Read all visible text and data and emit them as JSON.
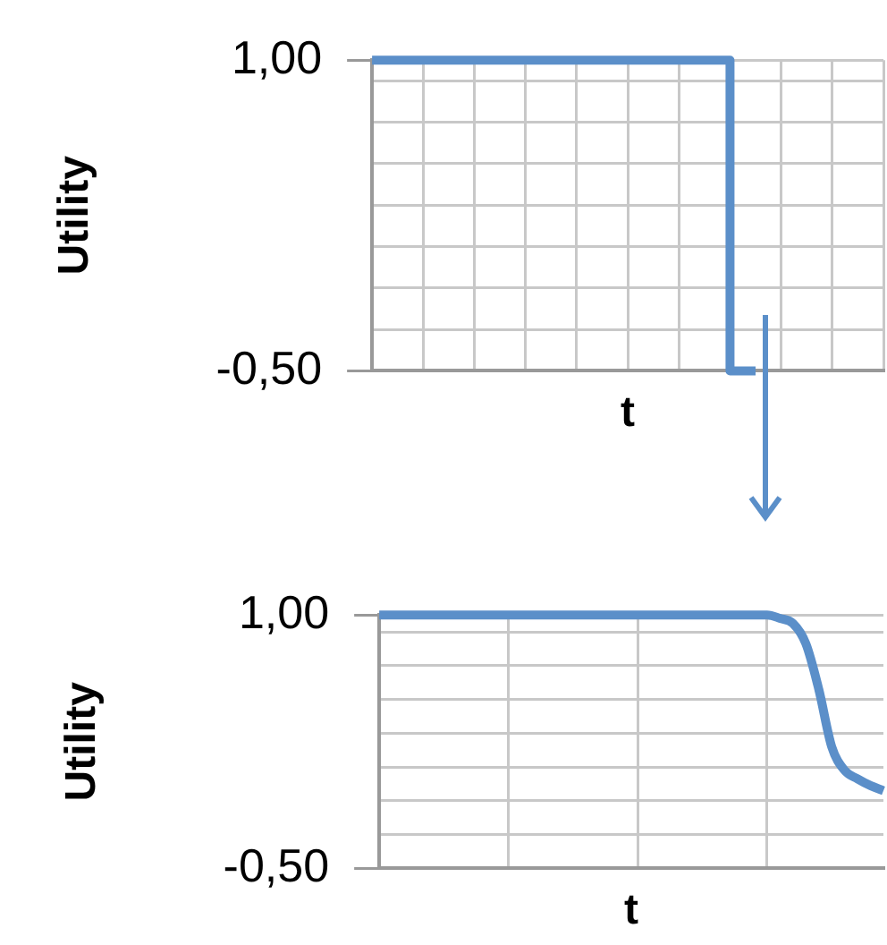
{
  "chart_data": [
    {
      "type": "step",
      "ylabel": "Utility",
      "xlabel": "t",
      "categories": [
        null,
        null,
        null,
        null,
        null,
        null,
        null,
        null,
        null,
        null,
        null,
        null,
        null,
        null,
        null,
        null,
        null,
        null,
        null,
        null,
        null
      ],
      "values": [
        1,
        1,
        1,
        1,
        1,
        1,
        1,
        1,
        1,
        1,
        1,
        1,
        1,
        1,
        1,
        -0.5,
        null,
        null,
        null,
        null,
        null
      ],
      "color": "#5b8fc9",
      "ylim": [
        -0.5,
        1
      ],
      "yticks": [
        {
          "value": -0.5,
          "label": "-0,50"
        },
        {
          "value": -0.3,
          "label": null
        },
        {
          "value": -0.1,
          "label": null
        },
        {
          "value": 0.1,
          "label": null
        },
        {
          "value": 0.3,
          "label": null
        },
        {
          "value": 0.5,
          "label": null
        },
        {
          "value": 0.7,
          "label": null
        },
        {
          "value": 0.9,
          "label": null
        },
        {
          "value": 1,
          "label": "1,00"
        }
      ],
      "grid": true,
      "tick_labels": "y"
    },
    {
      "type": "line",
      "ylabel": "Utility",
      "xlabel": "t",
      "categories": [
        null,
        null,
        null,
        null,
        null,
        null,
        null,
        null,
        null,
        null,
        null,
        null,
        null,
        null,
        null,
        null,
        null,
        null,
        null,
        null,
        null,
        null,
        null,
        null,
        null,
        null,
        null,
        null,
        null,
        null,
        null,
        null,
        null,
        null,
        null,
        null,
        null,
        null,
        null,
        null
      ],
      "values": [
        1,
        1,
        1,
        1,
        1,
        1,
        1,
        1,
        1,
        1,
        1,
        1,
        1,
        1,
        1,
        1,
        1,
        1,
        1,
        1,
        1,
        1,
        1,
        1,
        1,
        1,
        1,
        1,
        1,
        1,
        1,
        0.98,
        0.95,
        0.83,
        0.56,
        0.22,
        0.08,
        0.03,
        -0.01,
        -0.04
      ],
      "color": "#5b8fc9",
      "ylim": [
        -0.5,
        1
      ],
      "yticks": [
        {
          "value": -0.5,
          "label": "-0,50"
        },
        {
          "value": -0.3,
          "label": null
        },
        {
          "value": -0.1,
          "label": null
        },
        {
          "value": 0.1,
          "label": null
        },
        {
          "value": 0.3,
          "label": null
        },
        {
          "value": 0.5,
          "label": null
        },
        {
          "value": 0.7,
          "label": null
        },
        {
          "value": 0.9,
          "label": null
        },
        {
          "value": 1,
          "label": "1,00"
        }
      ],
      "grid": true,
      "tick_labels": "y"
    }
  ]
}
